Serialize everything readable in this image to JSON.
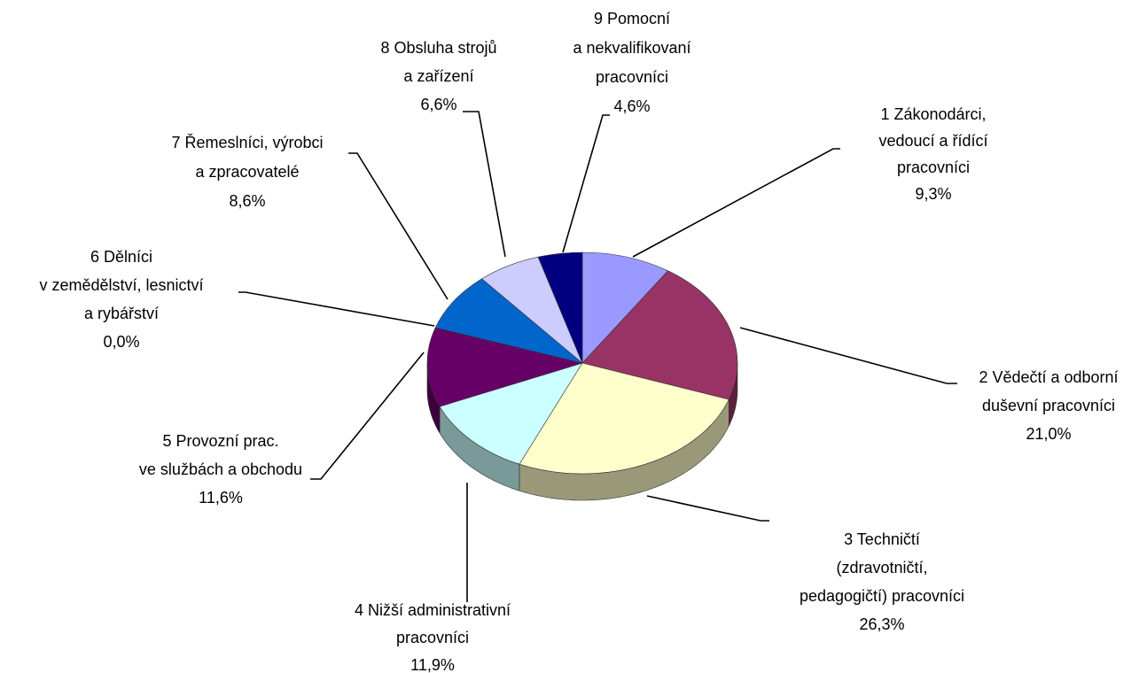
{
  "chart_data": {
    "type": "pie3d",
    "categories": [
      [
        "1 Zákonodárci,",
        "vedoucí a řídící",
        "pracovníci"
      ],
      [
        "2 Vědečtí a odborní",
        "duševní pracovníci"
      ],
      [
        "3 Techničtí",
        "(zdravotničtí,",
        "pedagogičtí) pracovníci"
      ],
      [
        "4 Nižší administrativní",
        "pracovníci"
      ],
      [
        "5 Provozní prac.",
        "ve službách a obchodu"
      ],
      [
        "6 Dělníci",
        "v zemědělství, lesnictví",
        "a rybářství"
      ],
      [
        "7 Řemeslníci, výrobci",
        "a zpracovatelé"
      ],
      [
        "8 Obsluha strojů",
        "a zařízení"
      ],
      [
        "9 Pomocní",
        "a nekvalifikovaní",
        "pracovníci"
      ]
    ],
    "values": [
      9.3,
      21.0,
      26.3,
      11.9,
      11.6,
      0.0,
      8.6,
      6.6,
      4.6
    ],
    "value_labels": [
      "9,3%",
      "21,0%",
      "26,3%",
      "11,9%",
      "11,6%",
      "0,0%",
      "8,6%",
      "6,6%",
      "4,6%"
    ],
    "colors": [
      "#9999ff",
      "#993366",
      "#ffffcc",
      "#ccffff",
      "#660066",
      "#ff8080",
      "#0066cc",
      "#ccccff",
      "#000080"
    ]
  }
}
